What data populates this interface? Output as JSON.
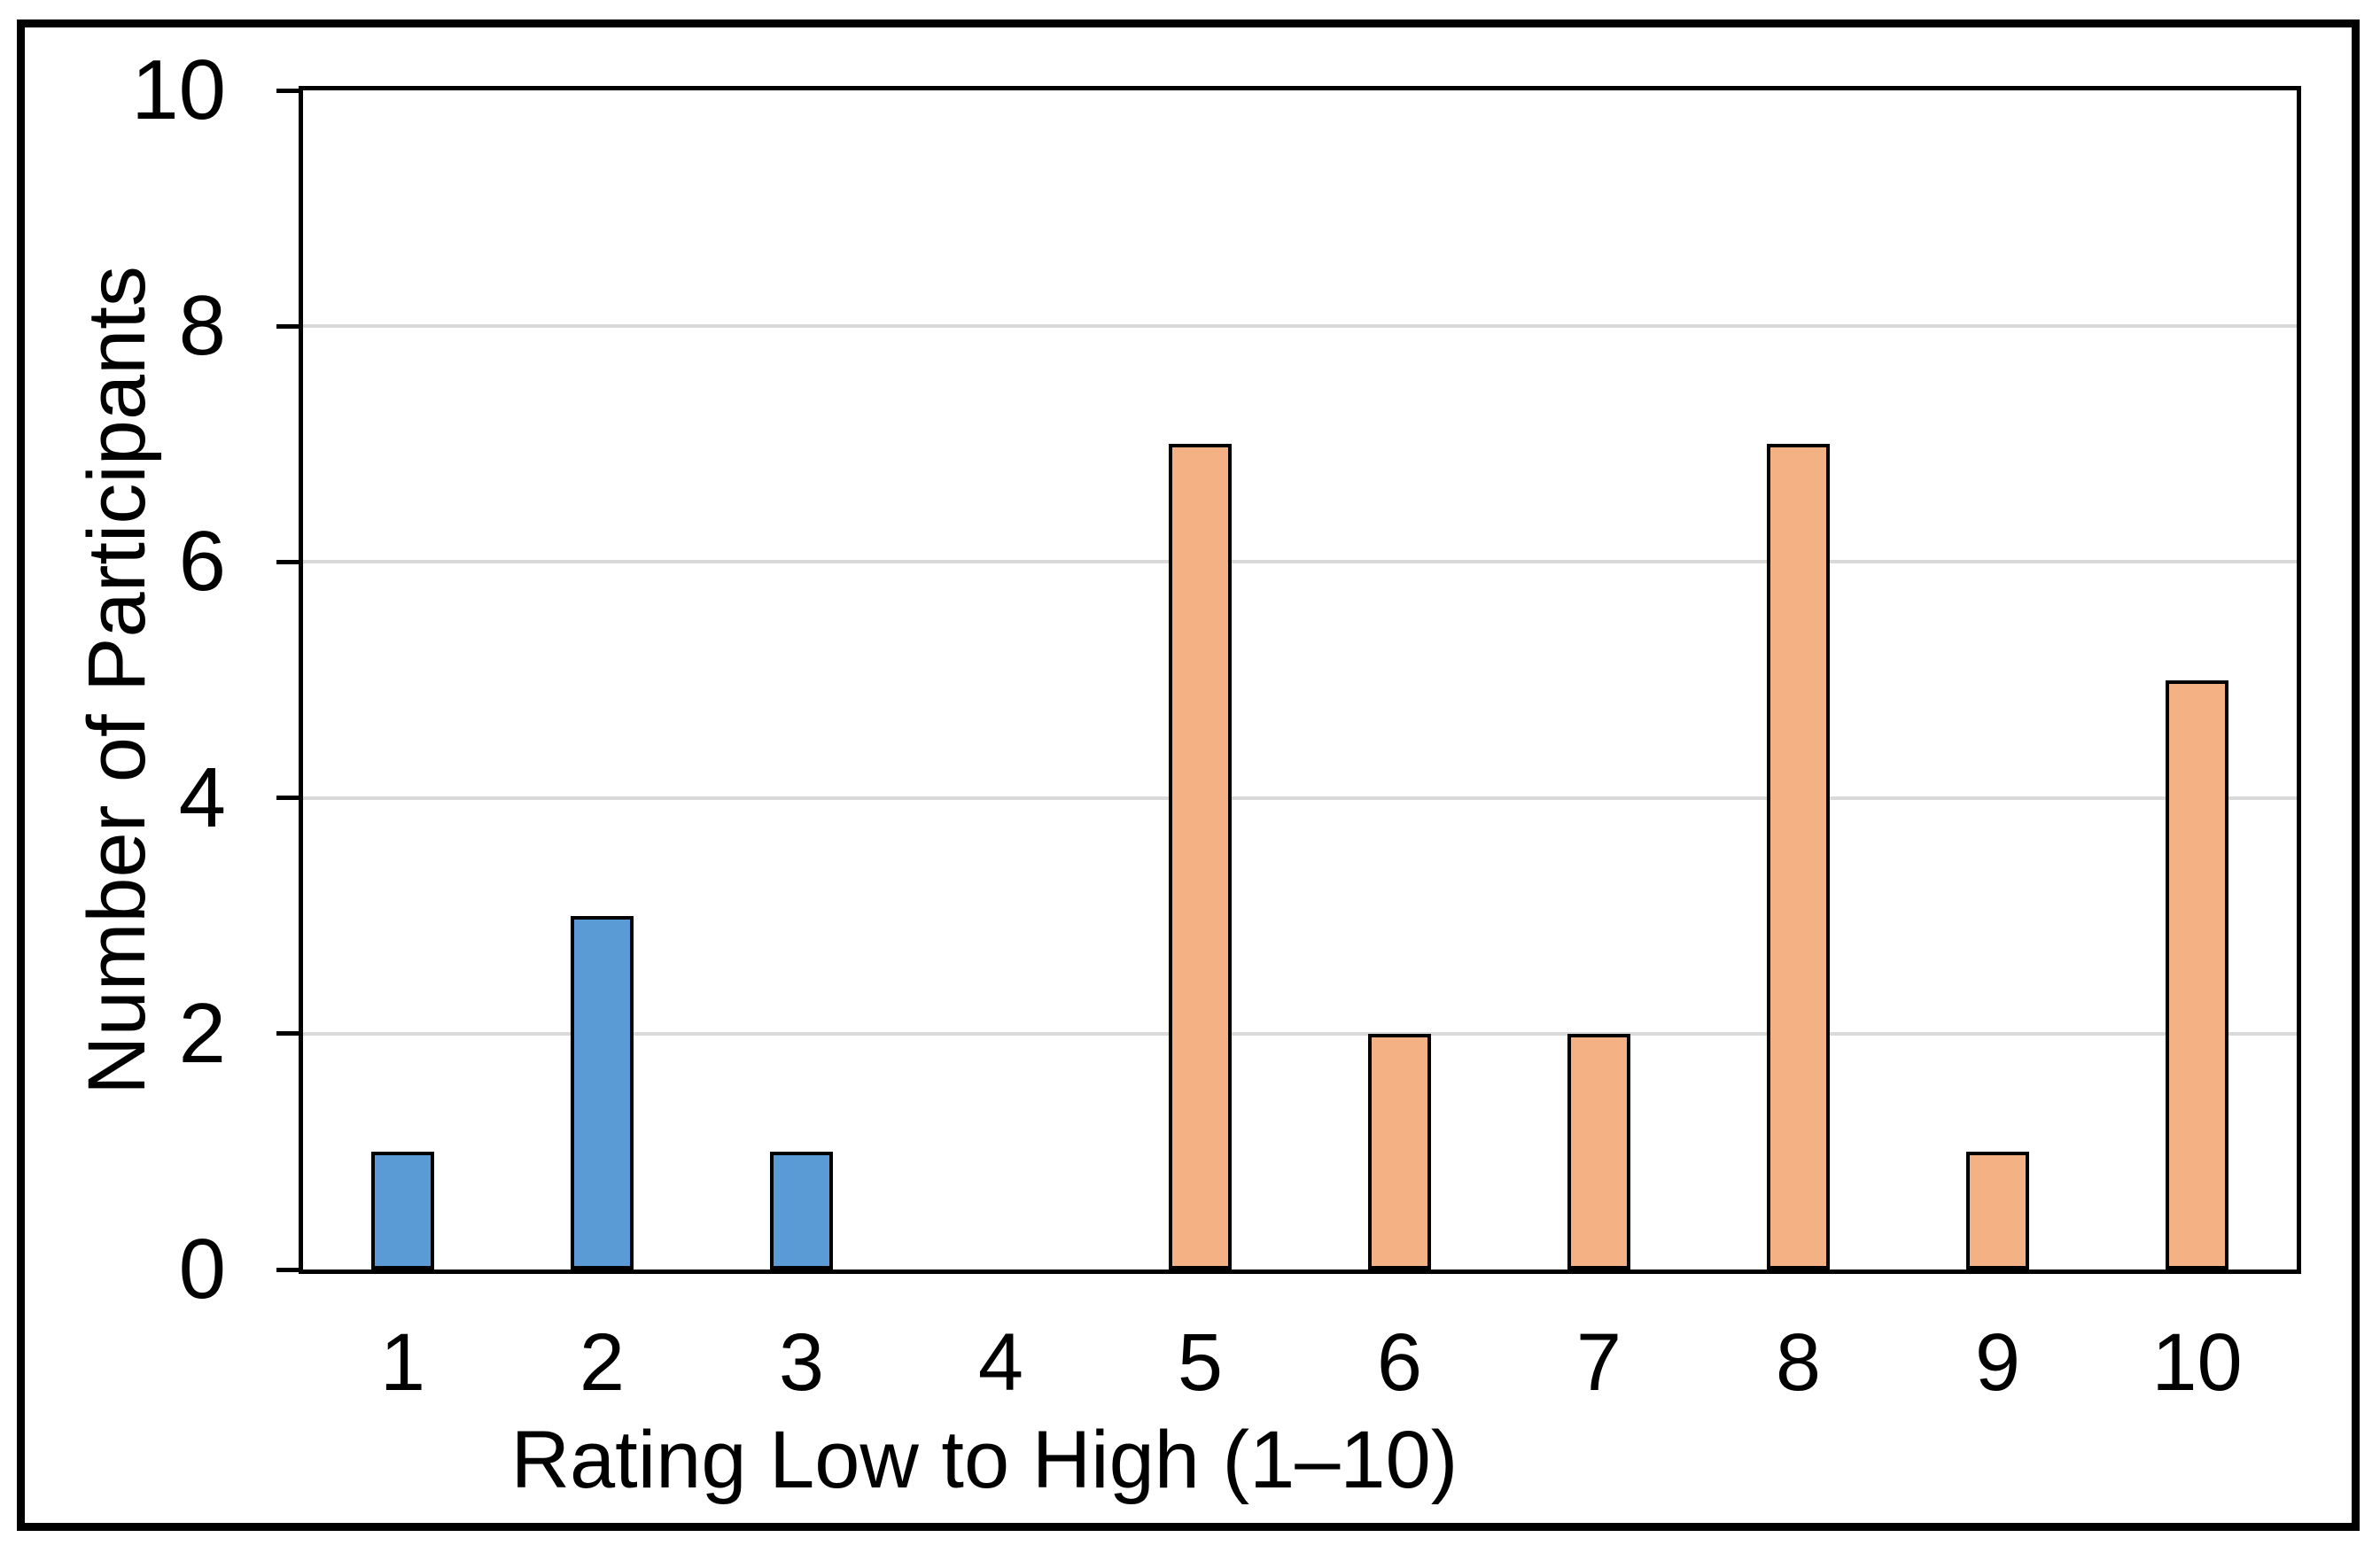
{
  "chart_data": {
    "type": "bar",
    "title": "",
    "xlabel": "Rating Low to High (1–10)",
    "ylabel": "Number of Participants",
    "categories": [
      "1",
      "2",
      "3",
      "4",
      "5",
      "6",
      "7",
      "8",
      "9",
      "10"
    ],
    "values": [
      1,
      3,
      1,
      0,
      7,
      2,
      2,
      7,
      1,
      5
    ],
    "bar_colors": [
      "#5B9BD5",
      "#5B9BD5",
      "#5B9BD5",
      "#5B9BD5",
      "#F4B183",
      "#F4B183",
      "#F4B183",
      "#F4B183",
      "#F4B183",
      "#F4B183"
    ],
    "ylim": [
      0,
      10
    ],
    "yticks": [
      "0",
      "2",
      "4",
      "6",
      "8",
      "10"
    ],
    "gridlines_at": [
      2,
      4,
      6,
      8
    ],
    "grid": true,
    "legend": false
  },
  "colors": {
    "bar_blue": "#5B9BD5",
    "bar_orange": "#F4B183",
    "bar_outline": "#000000",
    "gridline": "#D9D9D9",
    "axis": "#000000",
    "background": "#FFFFFF"
  }
}
